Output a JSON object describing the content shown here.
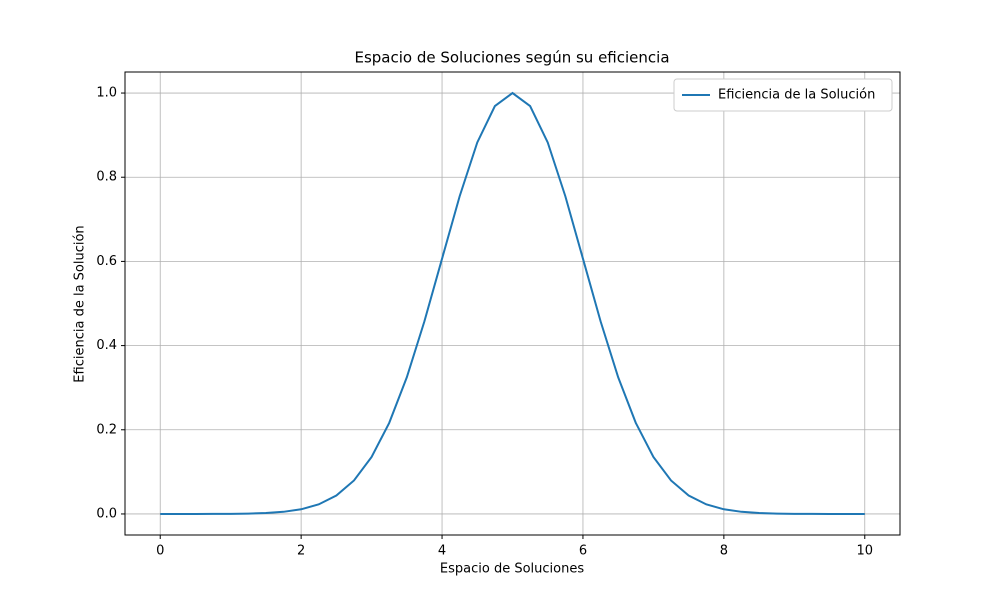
{
  "chart_data": {
    "type": "line",
    "title": "Espacio de Soluciones según su eficiencia",
    "xlabel": "Espacio de Soluciones",
    "ylabel": "Eficiencia de la Solución",
    "x": [
      0,
      0.25,
      0.5,
      0.75,
      1,
      1.25,
      1.5,
      1.75,
      2,
      2.25,
      2.5,
      2.75,
      3,
      3.25,
      3.5,
      3.75,
      4,
      4.25,
      4.5,
      4.75,
      5,
      5.25,
      5.5,
      5.75,
      6,
      6.25,
      6.5,
      6.75,
      7,
      7.25,
      7.5,
      7.75,
      8,
      8.25,
      8.5,
      8.75,
      9,
      9.25,
      9.5,
      9.75,
      10
    ],
    "series": [
      {
        "name": "Eficiencia de la Solución",
        "color": "#1f77b4",
        "values": [
          0,
          0,
          0,
          0.0001,
          0.0003,
          0.0009,
          0.0022,
          0.0051,
          0.0111,
          0.0228,
          0.0439,
          0.0796,
          0.1353,
          0.2163,
          0.3247,
          0.4578,
          0.6065,
          0.7548,
          0.8825,
          0.9692,
          1,
          0.9692,
          0.8825,
          0.7548,
          0.6065,
          0.4578,
          0.3247,
          0.2163,
          0.1353,
          0.0796,
          0.0439,
          0.0228,
          0.0111,
          0.0051,
          0.0022,
          0.0009,
          0.0003,
          0.0001,
          0,
          0,
          0
        ]
      }
    ],
    "xlim": [
      -0.5,
      10.5
    ],
    "ylim": [
      -0.05,
      1.05
    ],
    "xticks": [
      0,
      2,
      4,
      6,
      8,
      10
    ],
    "yticks": [
      {
        "value": 0,
        "label": "0.0"
      },
      {
        "value": 0.2,
        "label": "0.2"
      },
      {
        "value": 0.4,
        "label": "0.4"
      },
      {
        "value": 0.6,
        "label": "0.6"
      },
      {
        "value": 0.8,
        "label": "0.8"
      },
      {
        "value": 1,
        "label": "1.0"
      }
    ],
    "grid": true,
    "legend": "upper right"
  }
}
